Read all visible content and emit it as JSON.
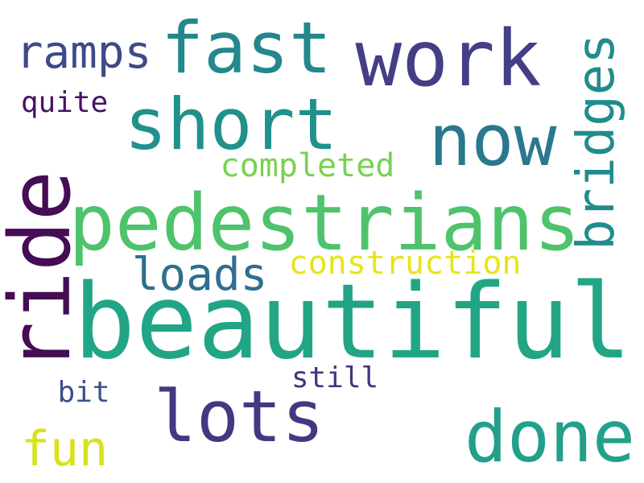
{
  "words": [
    {
      "id": "beautiful",
      "text": "beautiful",
      "color": "#21a585",
      "orientation": "horizontal"
    },
    {
      "id": "pedestrians",
      "text": "pedestrians",
      "color": "#4ec36b",
      "orientation": "horizontal"
    },
    {
      "id": "ride",
      "text": "ride",
      "color": "#440d54",
      "orientation": "vertical"
    },
    {
      "id": "short",
      "text": "short",
      "color": "#21918c",
      "orientation": "horizontal"
    },
    {
      "id": "work",
      "text": "work",
      "color": "#433e85",
      "orientation": "horizontal"
    },
    {
      "id": "now",
      "text": "now",
      "color": "#2a788e",
      "orientation": "horizontal"
    },
    {
      "id": "fast",
      "text": "fast",
      "color": "#23878d",
      "orientation": "horizontal"
    },
    {
      "id": "done",
      "text": "done",
      "color": "#22a08a",
      "orientation": "horizontal"
    },
    {
      "id": "lots",
      "text": "lots",
      "color": "#453882",
      "orientation": "horizontal"
    },
    {
      "id": "bridges",
      "text": "bridges",
      "color": "#228b8d",
      "orientation": "vertical"
    },
    {
      "id": "ramps",
      "text": "ramps",
      "color": "#3e4989",
      "orientation": "horizontal"
    },
    {
      "id": "loads",
      "text": "loads",
      "color": "#2d6f8e",
      "orientation": "horizontal"
    },
    {
      "id": "fun",
      "text": "fun",
      "color": "#d8e219",
      "orientation": "horizontal"
    },
    {
      "id": "construction",
      "text": "construction",
      "color": "#e7e419",
      "orientation": "horizontal"
    },
    {
      "id": "completed",
      "text": "completed",
      "color": "#7ad151",
      "orientation": "horizontal"
    },
    {
      "id": "still",
      "text": "still",
      "color": "#46337e",
      "orientation": "horizontal"
    },
    {
      "id": "quite",
      "text": "quite",
      "color": "#471365",
      "orientation": "horizontal"
    },
    {
      "id": "bit",
      "text": "bit",
      "color": "#3b518b",
      "orientation": "horizontal"
    }
  ]
}
